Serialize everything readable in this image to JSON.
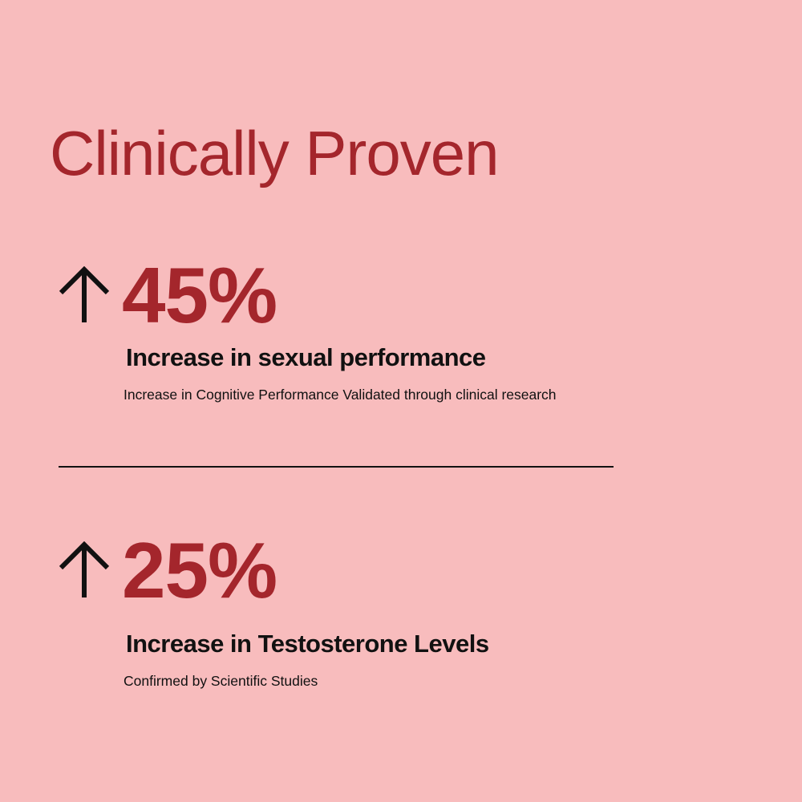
{
  "title": "Clinically Proven",
  "stats": [
    {
      "value": "45%",
      "heading": "Increase in sexual performance",
      "description": "Increase in Cognitive Performance Validated through clinical research"
    },
    {
      "value": "25%",
      "heading": "Increase in Testosterone Levels",
      "description": "Confirmed by Scientific Studies"
    }
  ]
}
